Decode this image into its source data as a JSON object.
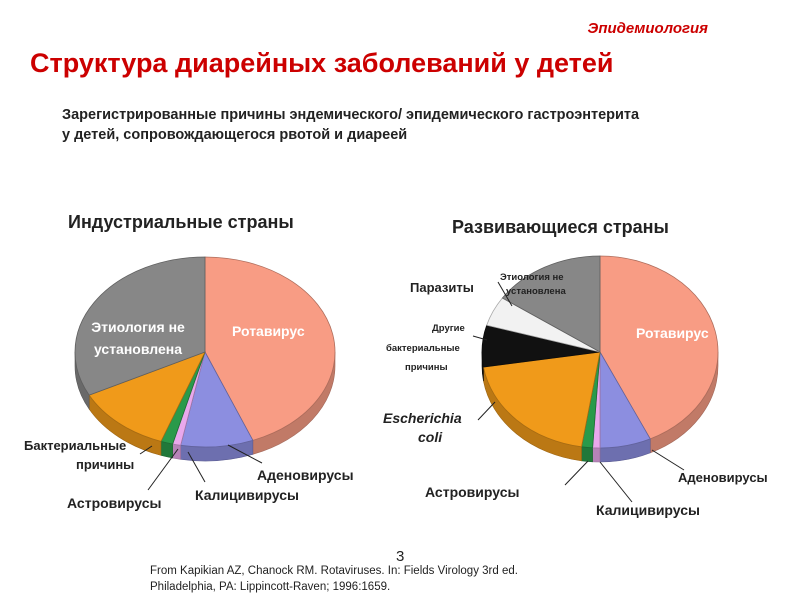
{
  "header": {
    "section": "Эпидемиология",
    "title": "Структура диарейных заболеваний у детей",
    "subtitle_line1": "Зарегистрированные причины эндемического/ эпидемического гастроэнтерита",
    "subtitle_line2": "у детей, сопровождающегося рвотой и диареей"
  },
  "chart_data": [
    {
      "type": "pie",
      "title": "Индустриальные страны",
      "slices": [
        {
          "label": "Ротавирус",
          "value": 44,
          "color": "#f89c84"
        },
        {
          "label": "Аденовирусы",
          "value": 9,
          "color": "#8c8ee0"
        },
        {
          "label": "Калицивирусы",
          "value": 1,
          "color": "#e9a8ec"
        },
        {
          "label": "Астровирусы",
          "value": 1.5,
          "color": "#2a9a4a"
        },
        {
          "label": "Бактериальные причины",
          "value": 12,
          "color": "#f09a1a"
        },
        {
          "label": "Этиология не установлена",
          "value": 32.5,
          "color": "#878787"
        }
      ]
    },
    {
      "type": "pie",
      "title": "Развивающиеся страны",
      "slices": [
        {
          "label": "Ротавирус",
          "value": 43,
          "color": "#f89c84"
        },
        {
          "label": "Аденовирусы",
          "value": 7,
          "color": "#8c8ee0"
        },
        {
          "label": "Калицивирусы",
          "value": 1,
          "color": "#e9a8ec"
        },
        {
          "label": "Астровирусы",
          "value": 1.5,
          "color": "#2a9a4a"
        },
        {
          "label": "Escherichia coli",
          "value": 20,
          "color": "#f09a1a"
        },
        {
          "label": "Другие бактериальные причины",
          "value": 7,
          "color": "#111111"
        },
        {
          "label": "Паразиты",
          "value": 5,
          "color": "#f2f2f2"
        },
        {
          "label": "Этиология не установлена",
          "value": 15.5,
          "color": "#878787"
        }
      ]
    }
  ],
  "labels": {
    "left": {
      "unknown_1": "Этиология не",
      "unknown_2": "установлена",
      "rota": "Ротавирус",
      "bact_1": "Бактериальные",
      "bact_2": "причины",
      "astro": "Астровирусы",
      "calici": "Калицивирусы",
      "adeno": "Аденовирусы"
    },
    "right": {
      "unknown_1": "Этиология не",
      "unknown_2": "установлена",
      "parasites": "Паразиты",
      "other_1": "Другие",
      "other_2": "бактериальные",
      "other_3": "причины",
      "ecoli_1": "Escherichia",
      "ecoli_2": "coli",
      "rota": "Ротавирус",
      "astro": "Астровирусы",
      "calici": "Калицивирусы",
      "adeno": "Аденовирусы"
    }
  },
  "footer": {
    "page_number": "3",
    "citation_line1": "From Kapikian AZ, Chanock RM. Rotaviruses. In: Fields Virology 3rd ed.",
    "citation_line2": "Philadelphia, PA: Lippincott-Raven; 1996:1659."
  }
}
